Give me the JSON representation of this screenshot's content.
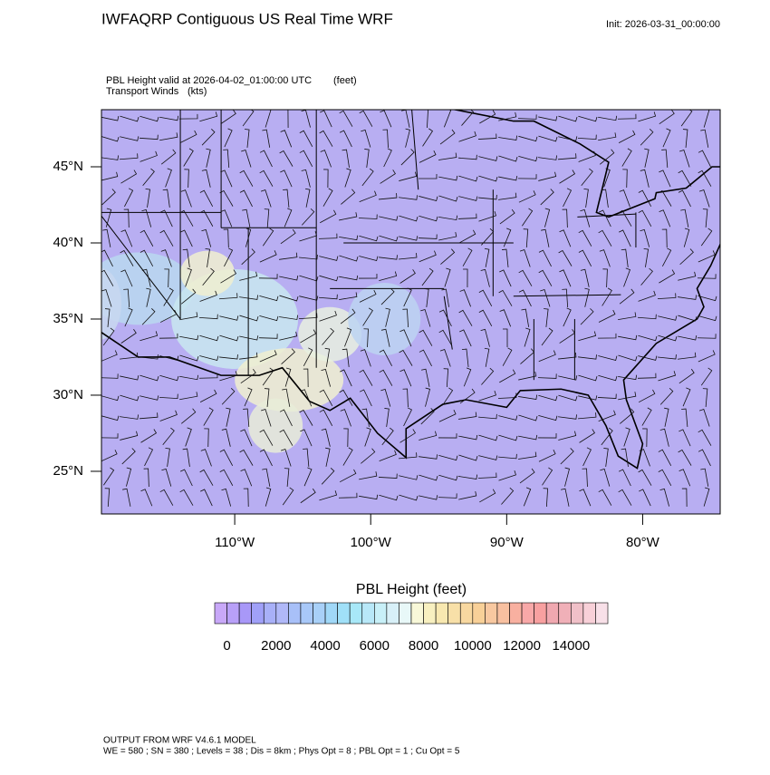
{
  "chart_data": {
    "type": "map",
    "title": "IWFAQRP Contiguous US Real Time WRF",
    "init": "Init: 2026-03-31_00:00:00",
    "field_label": "PBL Height valid at 2026-04-02_01:00:00 UTC",
    "field_units": "(feet)",
    "vector_label": "Transport Winds",
    "vector_units": "(kts)",
    "xlim": [
      -119.8,
      -74.3
    ],
    "ylim": [
      22.2,
      48.75
    ],
    "xticks": [
      {
        "value": -110,
        "label": "110°W"
      },
      {
        "value": -100,
        "label": "100°W"
      },
      {
        "value": -90,
        "label": "90°W"
      },
      {
        "value": -80,
        "label": "80°W"
      }
    ],
    "yticks": [
      {
        "value": 25,
        "label": "25°N"
      },
      {
        "value": 30,
        "label": "30°N"
      },
      {
        "value": 35,
        "label": "35°N"
      },
      {
        "value": 40,
        "label": "40°N"
      },
      {
        "value": 45,
        "label": "45°N"
      }
    ],
    "colorbar": {
      "title": "PBL Height  (feet)",
      "ticks": [
        0,
        2000,
        4000,
        6000,
        8000,
        10000,
        12000,
        14000
      ],
      "colors": [
        "#c8a8f8",
        "#b8a0f8",
        "#a898f8",
        "#a0a0f8",
        "#a8b0f8",
        "#b0b8f8",
        "#a8c0f8",
        "#a8c8f8",
        "#a8d0f8",
        "#a0d8f8",
        "#a0e0f8",
        "#a8e8f8",
        "#b8e8f8",
        "#c8f0f8",
        "#d8f0f8",
        "#e8f8f8",
        "#f8f8d8",
        "#f8f0c0",
        "#f8e8b0",
        "#f8e0a8",
        "#f8d8a0",
        "#f8d098",
        "#f8c8a0",
        "#f8c0a0",
        "#f8b0a0",
        "#f8a8a8",
        "#f8a0a0",
        "#f0a8b0",
        "#f0b0b8",
        "#f0c0c8",
        "#f8d0d8",
        "#f8e0e8"
      ]
    },
    "footer": [
      "OUTPUT FROM WRF V4.6.1 MODEL",
      "WE = 580 ; SN = 380 ; Levels = 38 ; Dis = 8km ; Phys Opt = 8 ; PBL Opt = 1 ; Cu Opt = 5"
    ]
  }
}
